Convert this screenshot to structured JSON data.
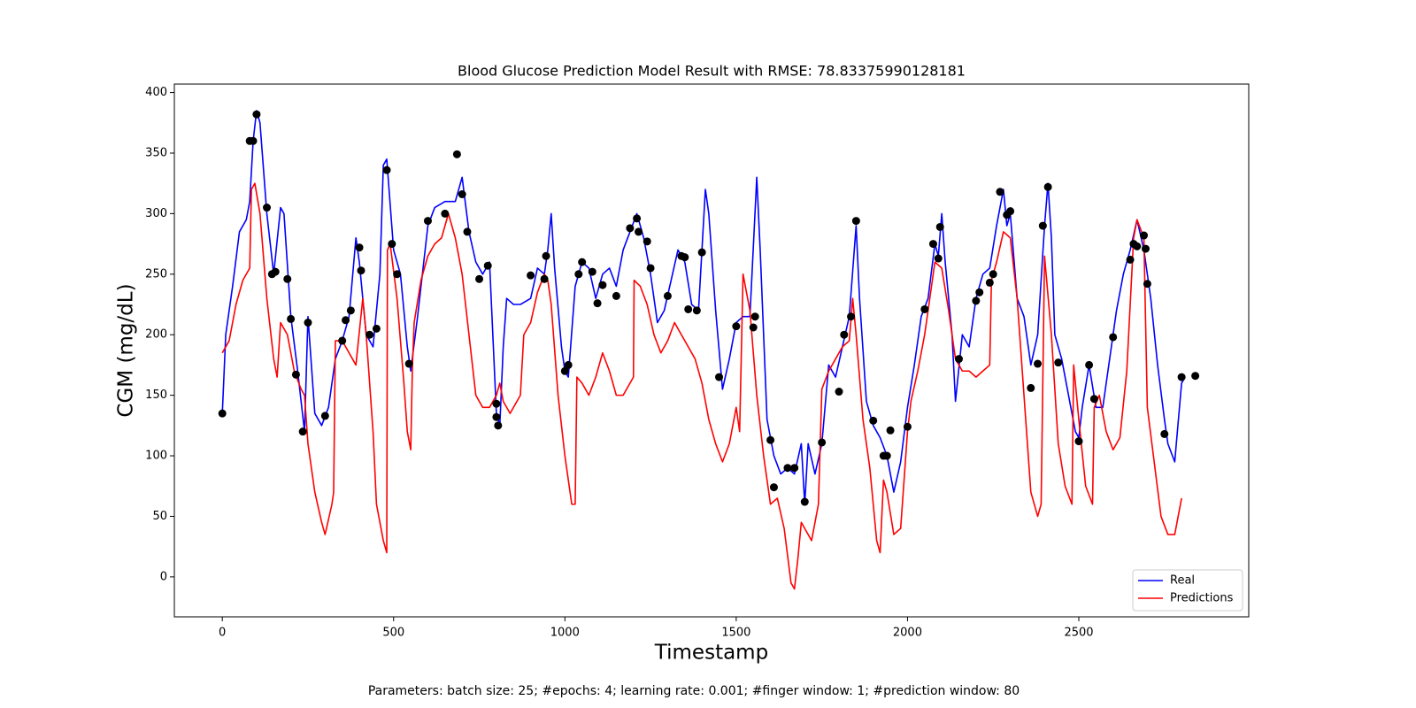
{
  "chart_data": {
    "type": "line",
    "title": "Blood Glucose Prediction Model Result with RMSE: 78.83375990128181",
    "xlabel": "Timestamp",
    "ylabel": "CGM (mg/dL)",
    "caption": "Parameters: batch size: 25; #epochs: 4; learning rate: 0.001; #finger window: 1; #prediction window: 80",
    "xlim": [
      -140,
      2996
    ],
    "ylim": [
      -33,
      407
    ],
    "xticks": [
      0,
      500,
      1000,
      1500,
      2000,
      2500
    ],
    "yticks": [
      0,
      50,
      100,
      150,
      200,
      250,
      300,
      350,
      400
    ],
    "grid": false,
    "legend": "lower right",
    "series": [
      {
        "name": "Real",
        "color": "#0000ff",
        "x": [
          0,
          10,
          30,
          50,
          70,
          80,
          90,
          100,
          110,
          130,
          150,
          170,
          180,
          200,
          220,
          240,
          250,
          270,
          290,
          310,
          330,
          350,
          370,
          390,
          400,
          420,
          440,
          460,
          470,
          480,
          500,
          520,
          540,
          550,
          570,
          600,
          620,
          650,
          680,
          700,
          720,
          740,
          760,
          780,
          800,
          810,
          820,
          830,
          850,
          870,
          900,
          920,
          940,
          950,
          960,
          970,
          990,
          1000,
          1010,
          1030,
          1050,
          1070,
          1090,
          1110,
          1130,
          1150,
          1170,
          1190,
          1210,
          1230,
          1250,
          1270,
          1290,
          1310,
          1330,
          1350,
          1370,
          1390,
          1410,
          1420,
          1440,
          1460,
          1480,
          1500,
          1520,
          1540,
          1560,
          1570,
          1590,
          1610,
          1630,
          1650,
          1670,
          1690,
          1700,
          1710,
          1730,
          1750,
          1770,
          1790,
          1810,
          1830,
          1850,
          1860,
          1880,
          1900,
          1920,
          1940,
          1960,
          1980,
          2000,
          2020,
          2040,
          2060,
          2080,
          2090,
          2100,
          2110,
          2130,
          2140,
          2160,
          2180,
          2200,
          2220,
          2240,
          2260,
          2280,
          2290,
          2300,
          2320,
          2340,
          2360,
          2380,
          2400,
          2410,
          2420,
          2430,
          2450,
          2470,
          2490,
          2500,
          2510,
          2530,
          2550,
          2570,
          2590,
          2610,
          2630,
          2650,
          2670,
          2690,
          2710,
          2730,
          2750,
          2760,
          2780,
          2800,
          2810
        ],
        "values": [
          135,
          200,
          240,
          285,
          295,
          310,
          360,
          385,
          375,
          300,
          250,
          305,
          300,
          215,
          170,
          120,
          215,
          135,
          125,
          140,
          180,
          195,
          215,
          280,
          260,
          200,
          190,
          250,
          340,
          345,
          270,
          250,
          190,
          170,
          215,
          290,
          305,
          310,
          310,
          330,
          285,
          260,
          250,
          260,
          135,
          125,
          190,
          230,
          225,
          225,
          230,
          255,
          250,
          270,
          300,
          255,
          190,
          170,
          165,
          240,
          260,
          255,
          230,
          250,
          255,
          240,
          270,
          285,
          300,
          280,
          250,
          210,
          220,
          245,
          270,
          260,
          225,
          220,
          320,
          300,
          220,
          155,
          180,
          210,
          215,
          215,
          330,
          270,
          130,
          100,
          85,
          90,
          85,
          110,
          60,
          110,
          85,
          110,
          175,
          165,
          190,
          215,
          290,
          230,
          145,
          125,
          115,
          100,
          70,
          95,
          140,
          175,
          215,
          230,
          275,
          265,
          300,
          260,
          200,
          145,
          200,
          190,
          230,
          250,
          255,
          290,
          320,
          290,
          300,
          230,
          215,
          175,
          200,
          290,
          325,
          280,
          200,
          180,
          150,
          120,
          115,
          140,
          175,
          140,
          140,
          180,
          220,
          250,
          270,
          295,
          270,
          230,
          175,
          130,
          110,
          95,
          160,
          165
        ]
      },
      {
        "name": "Predictions",
        "color": "#ff0000",
        "x": [
          0,
          20,
          40,
          60,
          80,
          85,
          95,
          110,
          130,
          150,
          160,
          170,
          190,
          210,
          230,
          240,
          250,
          270,
          290,
          300,
          320,
          325,
          330,
          350,
          370,
          390,
          410,
          420,
          440,
          450,
          470,
          480,
          482,
          490,
          510,
          530,
          540,
          550,
          555,
          560,
          580,
          600,
          620,
          640,
          660,
          680,
          700,
          720,
          740,
          760,
          780,
          800,
          810,
          820,
          840,
          870,
          880,
          900,
          920,
          940,
          950,
          960,
          980,
          1000,
          1020,
          1030,
          1035,
          1050,
          1070,
          1090,
          1110,
          1130,
          1150,
          1170,
          1200,
          1202,
          1220,
          1240,
          1260,
          1280,
          1300,
          1320,
          1340,
          1360,
          1380,
          1400,
          1420,
          1440,
          1460,
          1480,
          1500,
          1510,
          1520,
          1540,
          1560,
          1580,
          1600,
          1620,
          1640,
          1660,
          1670,
          1680,
          1690,
          1700,
          1720,
          1740,
          1750,
          1770,
          1790,
          1810,
          1830,
          1840,
          1850,
          1870,
          1890,
          1910,
          1920,
          1930,
          1940,
          1960,
          1980,
          2000,
          2010,
          2030,
          2050,
          2070,
          2080,
          2100,
          2120,
          2140,
          2160,
          2180,
          2200,
          2220,
          2240,
          2245,
          2260,
          2280,
          2300,
          2320,
          2340,
          2360,
          2380,
          2390,
          2400,
          2420,
          2440,
          2460,
          2480,
          2485,
          2500,
          2520,
          2540,
          2545,
          2560,
          2580,
          2600,
          2620,
          2640,
          2660,
          2670,
          2690,
          2700,
          2720,
          2740,
          2760,
          2780,
          2800
        ],
        "values": [
          185,
          195,
          225,
          245,
          255,
          320,
          325,
          300,
          230,
          180,
          165,
          210,
          200,
          170,
          155,
          150,
          110,
          70,
          45,
          35,
          60,
          70,
          195,
          195,
          185,
          175,
          230,
          200,
          120,
          60,
          30,
          20,
          270,
          275,
          230,
          160,
          120,
          105,
          175,
          210,
          245,
          265,
          275,
          280,
          300,
          280,
          250,
          200,
          150,
          140,
          140,
          150,
          160,
          145,
          135,
          150,
          200,
          210,
          235,
          250,
          245,
          225,
          150,
          100,
          60,
          60,
          165,
          160,
          150,
          165,
          185,
          170,
          150,
          150,
          165,
          245,
          240,
          225,
          200,
          185,
          195,
          210,
          200,
          190,
          180,
          160,
          130,
          110,
          95,
          110,
          140,
          120,
          250,
          220,
          150,
          100,
          60,
          65,
          40,
          -5,
          -10,
          15,
          45,
          40,
          30,
          60,
          155,
          170,
          180,
          190,
          195,
          230,
          200,
          130,
          90,
          30,
          20,
          80,
          70,
          35,
          40,
          120,
          145,
          170,
          200,
          240,
          260,
          255,
          220,
          180,
          170,
          170,
          165,
          170,
          175,
          245,
          260,
          285,
          280,
          230,
          150,
          70,
          50,
          60,
          265,
          200,
          110,
          75,
          60,
          175,
          130,
          75,
          60,
          140,
          150,
          120,
          105,
          115,
          170,
          280,
          295,
          280,
          140,
          95,
          50,
          35,
          35,
          65
        ]
      }
    ],
    "points": {
      "color": "#000000",
      "x": [
        0,
        80,
        90,
        100,
        130,
        145,
        155,
        190,
        200,
        215,
        235,
        250,
        300,
        350,
        360,
        375,
        400,
        405,
        430,
        450,
        480,
        495,
        510,
        545,
        600,
        650,
        685,
        700,
        715,
        750,
        775,
        800,
        800,
        805,
        900,
        940,
        945,
        1000,
        1010,
        1040,
        1050,
        1080,
        1095,
        1110,
        1150,
        1190,
        1210,
        1215,
        1240,
        1250,
        1300,
        1340,
        1350,
        1360,
        1385,
        1400,
        1450,
        1500,
        1550,
        1555,
        1600,
        1610,
        1650,
        1670,
        1700,
        1750,
        1800,
        1815,
        1835,
        1850,
        1900,
        1930,
        1940,
        1950,
        2000,
        2050,
        2075,
        2090,
        2095,
        2150,
        2200,
        2210,
        2240,
        2250,
        2270,
        2290,
        2300,
        2360,
        2380,
        2395,
        2410,
        2440,
        2500,
        2530,
        2545,
        2600,
        2650,
        2660,
        2670,
        2690,
        2695,
        2700,
        2750,
        2800,
        2840
      ],
      "values": [
        135,
        360,
        360,
        382,
        305,
        250,
        252,
        246,
        213,
        167,
        120,
        210,
        133,
        195,
        212,
        220,
        272,
        253,
        200,
        205,
        336,
        275,
        250,
        176,
        294,
        300,
        349,
        316,
        285,
        246,
        257,
        143,
        132,
        125,
        249,
        246,
        265,
        170,
        175,
        250,
        260,
        252,
        226,
        241,
        232,
        288,
        296,
        285,
        277,
        255,
        232,
        265,
        264,
        221,
        220,
        268,
        165,
        207,
        206,
        215,
        113,
        74,
        90,
        90,
        62,
        111,
        153,
        200,
        215,
        294,
        129,
        100,
        100,
        121,
        124,
        221,
        275,
        263,
        289,
        180,
        228,
        235,
        243,
        250,
        318,
        299,
        302,
        156,
        176,
        290,
        322,
        177,
        112,
        175,
        147,
        198,
        262,
        275,
        273,
        282,
        271,
        242,
        118,
        165,
        166
      ]
    }
  }
}
